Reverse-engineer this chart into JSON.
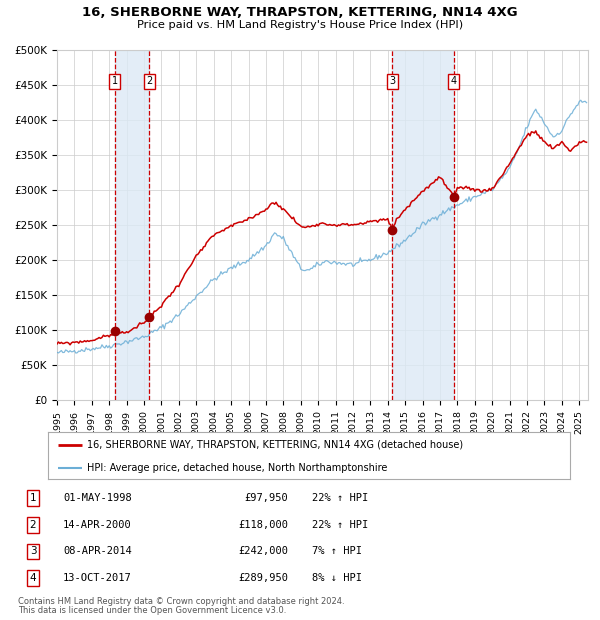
{
  "title": "16, SHERBORNE WAY, THRAPSTON, KETTERING, NN14 4XG",
  "subtitle": "Price paid vs. HM Land Registry's House Price Index (HPI)",
  "legend_line1": "16, SHERBORNE WAY, THRAPSTON, KETTERING, NN14 4XG (detached house)",
  "legend_line2": "HPI: Average price, detached house, North Northamptonshire",
  "footer1": "Contains HM Land Registry data © Crown copyright and database right 2024.",
  "footer2": "This data is licensed under the Open Government Licence v3.0.",
  "transactions": [
    {
      "id": 1,
      "price": 97950,
      "x_decimal": 1998.33
    },
    {
      "id": 2,
      "price": 118000,
      "x_decimal": 2000.29
    },
    {
      "id": 3,
      "price": 242000,
      "x_decimal": 2014.27
    },
    {
      "id": 4,
      "price": 289950,
      "x_decimal": 2017.78
    }
  ],
  "table_rows": [
    {
      "id": 1,
      "date_str": "01-MAY-1998",
      "price_str": "£97,950",
      "pct_str": "22% ↑ HPI"
    },
    {
      "id": 2,
      "date_str": "14-APR-2000",
      "price_str": "£118,000",
      "pct_str": "22% ↑ HPI"
    },
    {
      "id": 3,
      "date_str": "08-APR-2014",
      "price_str": "£242,000",
      "pct_str": "7% ↑ HPI"
    },
    {
      "id": 4,
      "date_str": "13-OCT-2017",
      "price_str": "£289,950",
      "pct_str": "8% ↓ HPI"
    }
  ],
  "ylim": [
    0,
    500000
  ],
  "yticks": [
    0,
    50000,
    100000,
    150000,
    200000,
    250000,
    300000,
    350000,
    400000,
    450000,
    500000
  ],
  "xlim_start": 1995.0,
  "xlim_end": 2025.5,
  "hpi_color": "#6baed6",
  "price_color": "#cc0000",
  "marker_color": "#990000",
  "vline_color": "#cc0000",
  "shade_color": "#dce9f5",
  "background_color": "#ffffff",
  "grid_color": "#cccccc",
  "hpi_anchors": [
    [
      1995.0,
      67000
    ],
    [
      1996.0,
      70000
    ],
    [
      1997.0,
      73000
    ],
    [
      1998.0,
      77000
    ],
    [
      1999.0,
      83000
    ],
    [
      2000.0,
      90000
    ],
    [
      2001.0,
      103000
    ],
    [
      2002.0,
      122000
    ],
    [
      2003.0,
      148000
    ],
    [
      2004.0,
      172000
    ],
    [
      2005.0,
      188000
    ],
    [
      2006.0,
      200000
    ],
    [
      2007.0,
      220000
    ],
    [
      2007.5,
      238000
    ],
    [
      2008.0,
      230000
    ],
    [
      2009.0,
      187000
    ],
    [
      2009.5,
      185000
    ],
    [
      2010.0,
      193000
    ],
    [
      2010.5,
      198000
    ],
    [
      2011.0,
      196000
    ],
    [
      2012.0,
      193000
    ],
    [
      2013.0,
      200000
    ],
    [
      2014.0,
      210000
    ],
    [
      2015.0,
      228000
    ],
    [
      2016.0,
      250000
    ],
    [
      2017.0,
      265000
    ],
    [
      2018.0,
      278000
    ],
    [
      2019.0,
      290000
    ],
    [
      2020.0,
      300000
    ],
    [
      2021.0,
      330000
    ],
    [
      2021.5,
      358000
    ],
    [
      2022.0,
      390000
    ],
    [
      2022.5,
      415000
    ],
    [
      2023.0,
      395000
    ],
    [
      2023.5,
      375000
    ],
    [
      2024.0,
      385000
    ],
    [
      2024.5,
      408000
    ],
    [
      2025.0,
      425000
    ]
  ],
  "price_anchors": [
    [
      1995.0,
      80000
    ],
    [
      1996.0,
      82000
    ],
    [
      1997.0,
      85000
    ],
    [
      1998.0,
      92000
    ],
    [
      1998.33,
      97950
    ],
    [
      1999.0,
      96000
    ],
    [
      2000.0,
      110000
    ],
    [
      2000.29,
      118000
    ],
    [
      2001.0,
      135000
    ],
    [
      2002.0,
      165000
    ],
    [
      2003.0,
      205000
    ],
    [
      2004.0,
      235000
    ],
    [
      2005.0,
      248000
    ],
    [
      2006.0,
      258000
    ],
    [
      2007.0,
      272000
    ],
    [
      2007.5,
      283000
    ],
    [
      2008.0,
      272000
    ],
    [
      2008.5,
      260000
    ],
    [
      2009.0,
      247000
    ],
    [
      2009.5,
      247000
    ],
    [
      2010.0,
      252000
    ],
    [
      2011.0,
      250000
    ],
    [
      2012.0,
      250000
    ],
    [
      2013.0,
      254000
    ],
    [
      2014.0,
      258000
    ],
    [
      2014.27,
      242000
    ],
    [
      2014.5,
      258000
    ],
    [
      2015.0,
      272000
    ],
    [
      2016.0,
      298000
    ],
    [
      2017.0,
      318000
    ],
    [
      2017.78,
      289950
    ],
    [
      2018.0,
      300000
    ],
    [
      2018.5,
      304000
    ],
    [
      2019.0,
      300000
    ],
    [
      2019.5,
      298000
    ],
    [
      2020.0,
      302000
    ],
    [
      2020.5,
      318000
    ],
    [
      2021.0,
      338000
    ],
    [
      2021.5,
      358000
    ],
    [
      2022.0,
      378000
    ],
    [
      2022.5,
      382000
    ],
    [
      2023.0,
      368000
    ],
    [
      2023.5,
      358000
    ],
    [
      2024.0,
      368000
    ],
    [
      2024.5,
      355000
    ],
    [
      2025.0,
      368000
    ]
  ]
}
